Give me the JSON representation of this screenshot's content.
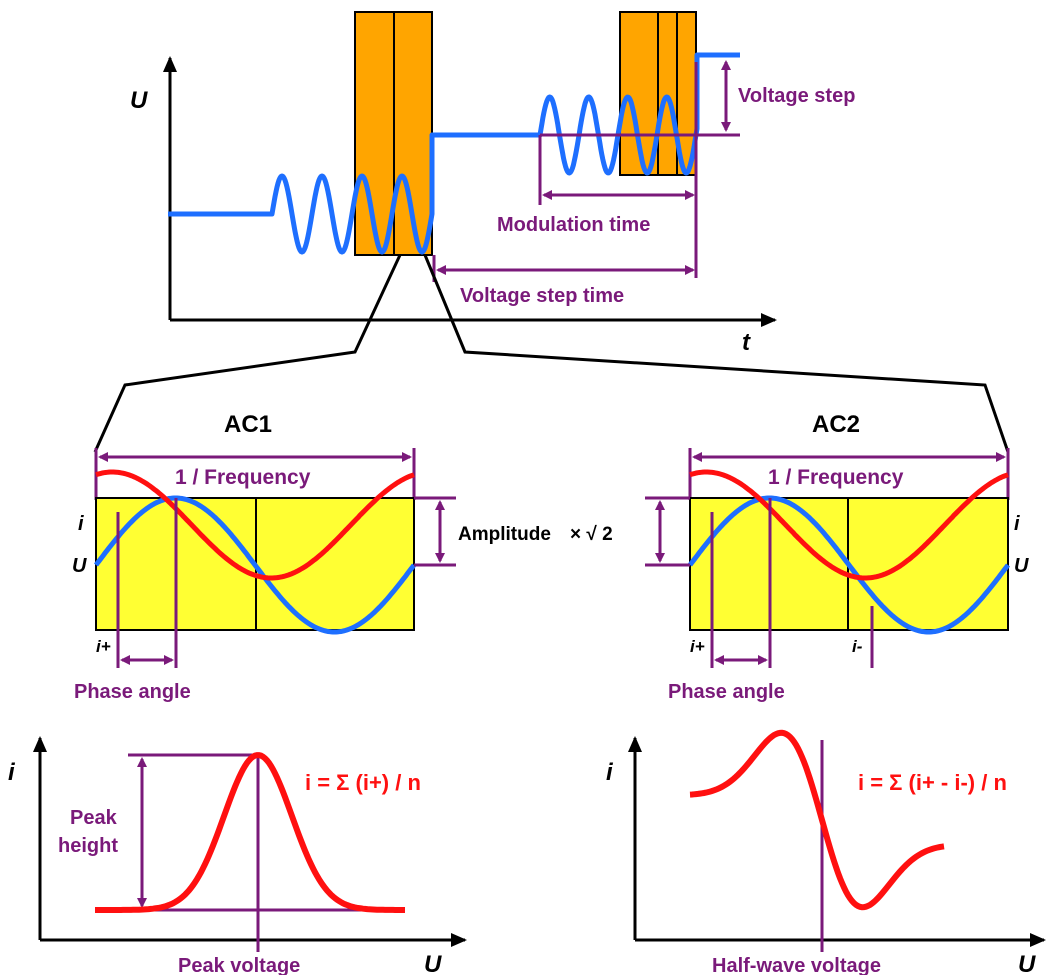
{
  "colors": {
    "voltage_blue": "#1e6fff",
    "current_red": "#ff1010",
    "annotation_purple": "#7a1a7a",
    "measure_window_orange": "#ffa500",
    "ac_panel_yellow": "#ffff33",
    "outline_black": "#000000"
  },
  "top_plot": {
    "y_axis_label": "U",
    "x_axis_label": "t",
    "voltage_step_label": "Voltage step",
    "modulation_time_label": "Modulation time",
    "voltage_step_time_label": "Voltage step time"
  },
  "ac1": {
    "title": "AC1",
    "period_label": "1 / Frequency",
    "current_label": "i",
    "voltage_label": "U",
    "sample_label": "i+",
    "phase_angle_label": "Phase angle",
    "amplitude_label": "Amplitude",
    "amplitude_factor": "× √ 2"
  },
  "ac2": {
    "title": "AC2",
    "period_label": "1 / Frequency",
    "current_label": "i",
    "voltage_label": "U",
    "sample_plus_label": "i+",
    "sample_minus_label": "i-",
    "phase_angle_label": "Phase angle"
  },
  "result1": {
    "y_axis_label": "i",
    "x_axis_label": "U",
    "formula": "i = Σ (i+) / n",
    "peak_height_line1": "Peak",
    "peak_height_line2": "height",
    "peak_voltage_label": "Peak voltage"
  },
  "result2": {
    "y_axis_label": "i",
    "x_axis_label": "U",
    "formula": "i = Σ (i+ - i-) / n",
    "half_wave_label": "Half-wave voltage"
  }
}
